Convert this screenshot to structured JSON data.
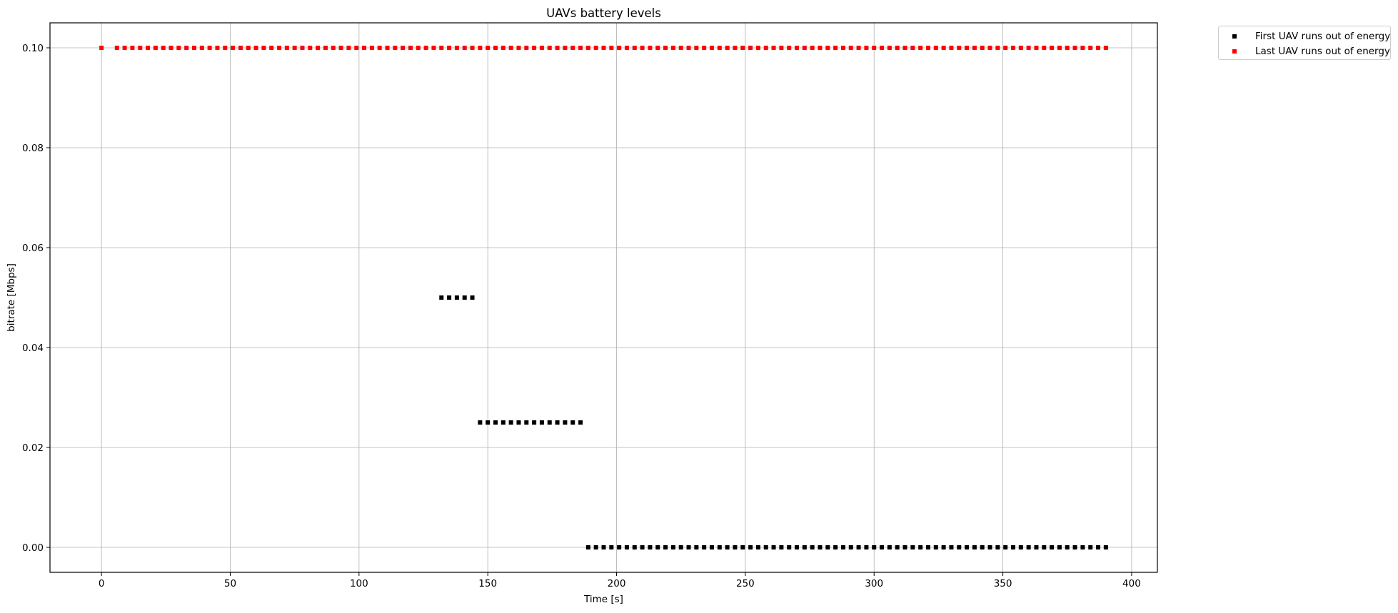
{
  "chart_data": {
    "type": "scatter",
    "title": "UAVs battery levels",
    "xlabel": "Time [s]",
    "ylabel": "bitrate [Mbps]",
    "xlim": [
      -20,
      410
    ],
    "ylim": [
      -0.005,
      0.105
    ],
    "xticks": [
      0,
      50,
      100,
      150,
      200,
      250,
      300,
      350,
      400
    ],
    "yticks": [
      0.0,
      0.02,
      0.04,
      0.06,
      0.08,
      0.1
    ],
    "xtick_labels": [
      "0",
      "50",
      "100",
      "150",
      "200",
      "250",
      "300",
      "350",
      "400"
    ],
    "ytick_labels": [
      "0.00",
      "0.02",
      "0.04",
      "0.06",
      "0.08",
      "0.10"
    ],
    "grid": true,
    "legend": "outside upper right",
    "series": [
      {
        "name": "First UAV runs out of energy",
        "color": "#000000",
        "marker": "square",
        "segments": [
          {
            "x_start": 132,
            "x_end": 144,
            "step": 3,
            "y": 0.05
          },
          {
            "x_start": 147,
            "x_end": 186,
            "step": 3,
            "y": 0.025
          },
          {
            "x_start": 189,
            "x_end": 390,
            "step": 3,
            "y": 0.0
          }
        ]
      },
      {
        "name": "Last UAV runs out of energy",
        "color": "#ff0000",
        "marker": "square",
        "points": [
          [
            0,
            0.1
          ]
        ],
        "segments": [
          {
            "x_start": 6,
            "x_end": 390,
            "step": 3,
            "y": 0.1
          }
        ]
      }
    ]
  }
}
